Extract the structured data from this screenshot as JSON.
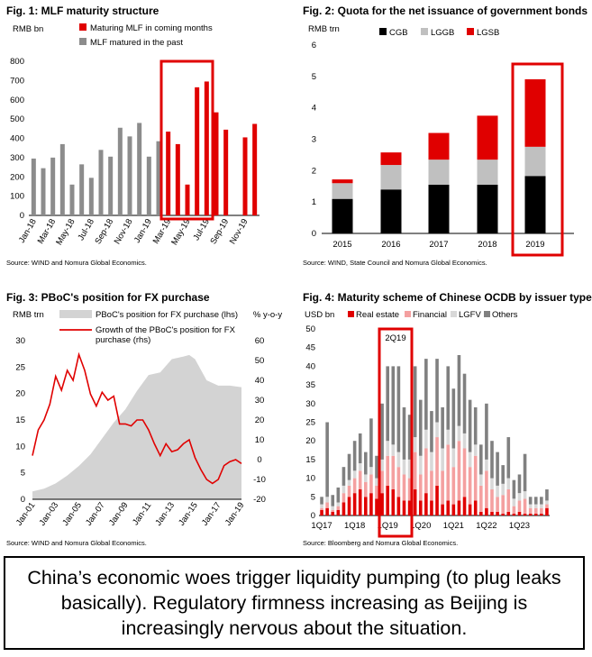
{
  "chart_data": [
    {
      "type": "bar",
      "title": "Fig. 1: MLF maturity structure",
      "ylabel": "RMB bn",
      "ylim": [
        0,
        800
      ],
      "yticks": [
        0,
        100,
        200,
        300,
        400,
        500,
        600,
        700,
        800
      ],
      "x": [
        "Jan-18",
        "Feb-18",
        "Mar-18",
        "Apr-18",
        "May-18",
        "Jun-18",
        "Jul-18",
        "Aug-18",
        "Sep-18",
        "Oct-18",
        "Nov-18",
        "Dec-18",
        "Jan-19",
        "Feb-19",
        "Mar-19",
        "Apr-19",
        "May-19",
        "Jun-19",
        "Jul-19",
        "Aug-19",
        "Sep-19",
        "Oct-19",
        "Nov-19",
        "Dec-19"
      ],
      "xticklabels": [
        "Jan-18",
        "Mar-18",
        "May-18",
        "Jul-18",
        "Sep-18",
        "Nov-18",
        "Jan-19",
        "Mar-19",
        "May-19",
        "Jul-19",
        "Sep-19",
        "Nov-19"
      ],
      "series": [
        {
          "name": "Maturing MLF in coming months",
          "color": "#e00000",
          "values": [
            null,
            null,
            null,
            null,
            null,
            null,
            null,
            null,
            null,
            null,
            null,
            null,
            null,
            null,
            435,
            370,
            160,
            665,
            695,
            535,
            445,
            null,
            405,
            475
          ]
        },
        {
          "name": "MLF matured in the past",
          "color": "#8c8c8c",
          "values": [
            295,
            245,
            300,
            370,
            160,
            265,
            195,
            340,
            305,
            455,
            410,
            480,
            305,
            385,
            null,
            null,
            null,
            null,
            null,
            null,
            null,
            null,
            null,
            null
          ]
        }
      ],
      "source": "Source: WIND and Nomura Global Economics."
    },
    {
      "type": "bar",
      "stacked": true,
      "title": "Fig. 2: Quota for the net issuance of government bonds",
      "ylabel": "RMB trn",
      "ylim": [
        0,
        6
      ],
      "yticks": [
        0,
        1,
        2,
        3,
        4,
        5,
        6
      ],
      "categories": [
        "2015",
        "2016",
        "2017",
        "2018",
        "2019"
      ],
      "series": [
        {
          "name": "CGB",
          "color": "#000000",
          "values": [
            1.1,
            1.4,
            1.55,
            1.55,
            1.83
          ]
        },
        {
          "name": "LGGB",
          "color": "#c0c0c0",
          "values": [
            0.5,
            0.78,
            0.8,
            0.8,
            0.93
          ]
        },
        {
          "name": "LGSB",
          "color": "#e00000",
          "values": [
            0.12,
            0.4,
            0.85,
            1.4,
            2.15
          ]
        }
      ],
      "source": "Source: WIND, State Council and Nomura Global Economics."
    },
    {
      "type": "area",
      "title": "Fig. 3: PBoC's position for FX purchase",
      "ylabel": "RMB trn",
      "ylabel_right": "% y-o-y",
      "ylim": [
        0,
        30
      ],
      "ylim_right": [
        -20,
        60
      ],
      "yticks": [
        0,
        5,
        10,
        15,
        20,
        25,
        30
      ],
      "yticks_right": [
        -20,
        -10,
        0,
        10,
        20,
        30,
        40,
        50,
        60
      ],
      "xticklabels": [
        "Jan-01",
        "Jan-03",
        "Jan-05",
        "Jan-07",
        "Jan-09",
        "Jan-11",
        "Jan-13",
        "Jan-15",
        "Jan-17",
        "Jan-19"
      ],
      "series": [
        {
          "name": "PBoC's position for FX purchase (lhs)",
          "color": "#d3d3d3",
          "axis": "left",
          "x": [
            2001,
            2002,
            2003,
            2004,
            2005,
            2006,
            2007,
            2008,
            2009,
            2010,
            2011,
            2012,
            2013,
            2014,
            2014.5,
            2015,
            2016,
            2017,
            2018,
            2019
          ],
          "values": [
            1.5,
            2.0,
            3.0,
            4.5,
            6.3,
            8.5,
            11.5,
            14.5,
            17.0,
            20.5,
            23.5,
            24.0,
            26.5,
            27.0,
            27.3,
            26.5,
            22.5,
            21.5,
            21.5,
            21.2
          ]
        },
        {
          "name": "Growth of the PBoC's position for FX purchase (rhs)",
          "color": "#e00000",
          "axis": "right",
          "x": [
            2001,
            2001.5,
            2002,
            2002.5,
            2003,
            2003.5,
            2004,
            2004.5,
            2005,
            2005.5,
            2006,
            2006.5,
            2007,
            2007.5,
            2008,
            2008.5,
            2009,
            2009.5,
            2010,
            2010.5,
            2011,
            2011.5,
            2012,
            2012.5,
            2013,
            2013.5,
            2014,
            2014.5,
            2015,
            2015.5,
            2016,
            2016.5,
            2017,
            2017.5,
            2018,
            2018.5,
            2019
          ],
          "values": [
            2,
            15,
            20,
            28,
            42,
            35,
            45,
            40,
            53,
            45,
            33,
            27,
            34,
            30,
            32,
            18,
            18,
            17,
            20,
            20,
            15,
            8,
            2,
            8,
            4,
            5,
            8,
            10,
            1,
            -5,
            -10,
            -12,
            -10,
            -3,
            -1,
            0,
            -2
          ]
        }
      ],
      "source": "Source: WIND and Nomura Global Economics."
    },
    {
      "type": "bar",
      "stacked": true,
      "title": "Fig. 4: Maturity scheme of Chinese OCDB by issuer type",
      "ylabel": "USD bn",
      "ylim": [
        0,
        50
      ],
      "yticks": [
        0,
        5,
        10,
        15,
        20,
        25,
        30,
        35,
        40,
        45,
        50
      ],
      "xticklabels": [
        "1Q17",
        "1Q18",
        "1Q19",
        "1Q20",
        "1Q21",
        "1Q22",
        "1Q23"
      ],
      "annotation": "2Q19",
      "series": [
        {
          "name": "Real estate",
          "color": "#e00000",
          "values": [
            1.5,
            2,
            1,
            1.5,
            3.5,
            5,
            6,
            7,
            5,
            6,
            4.5,
            6,
            8,
            7,
            5,
            4,
            4,
            7,
            4,
            6,
            4,
            8,
            3,
            4,
            3,
            4,
            5,
            3,
            4,
            1,
            2,
            1,
            1,
            0.5,
            1,
            0.5,
            1,
            0.5,
            0.5,
            0.5,
            0.5,
            2
          ]
        },
        {
          "name": "Financial",
          "color": "#f4a0a0",
          "values": [
            0.5,
            1.5,
            0.5,
            1,
            2.5,
            3,
            4,
            5,
            4,
            5,
            3.5,
            6,
            8,
            9,
            8,
            7,
            6,
            10,
            7,
            12,
            8,
            13,
            9,
            15,
            10,
            16,
            13,
            10,
            12,
            7,
            10,
            6,
            4,
            5,
            6,
            2,
            3,
            4,
            1.5,
            1.5,
            1.5,
            1
          ]
        },
        {
          "name": "LGFV",
          "color": "#d8d8d8",
          "values": [
            1,
            1.5,
            1,
            1,
            2,
            1.5,
            2,
            2,
            2,
            2,
            2,
            3,
            4,
            3,
            4,
            4,
            5,
            4,
            5,
            5,
            5,
            4,
            6,
            4,
            5,
            4,
            4,
            4,
            3,
            3,
            3,
            3,
            3,
            3,
            3,
            2,
            2,
            2,
            1,
            1,
            1,
            1
          ]
        },
        {
          "name": "Others",
          "color": "#808080",
          "values": [
            2,
            20,
            3,
            4,
            5,
            7,
            8,
            8,
            6,
            13,
            6,
            15,
            20,
            21,
            23,
            14,
            12,
            19,
            15,
            19,
            11,
            17,
            11,
            17,
            16,
            19,
            16,
            14,
            10,
            8,
            15,
            10,
            9,
            5,
            11,
            5,
            5,
            10,
            2,
            2,
            2,
            3
          ]
        }
      ],
      "source": "Source: Bloomberg and Nomura Global Economics."
    }
  ],
  "caption": "China’s economic woes trigger liquidity pumping (to plug leaks basically). Regulatory firmness increasing as Beijing is increasingly nervous about the situation."
}
